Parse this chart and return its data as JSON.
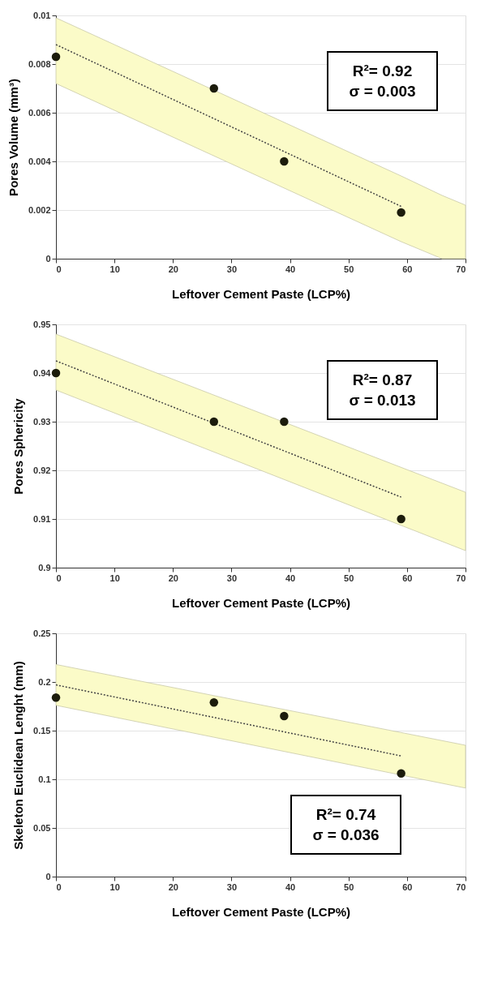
{
  "chart_data": [
    {
      "type": "scatter",
      "xlabel": "Leftover Cement Paste (LCP%)",
      "ylabel": "Pores Volume (mm³)",
      "xlim": [
        0,
        70
      ],
      "xticks": [
        0,
        10,
        20,
        30,
        40,
        50,
        60,
        70
      ],
      "ylim": [
        0,
        0.01
      ],
      "yticks": [
        0,
        0.002,
        0.004,
        0.006,
        0.008,
        0.01
      ],
      "grid": "y",
      "annotations": [
        "R²= 0.92",
        "σ = 0.003"
      ],
      "series": [
        {
          "type": "area",
          "color": "#fbfbc8",
          "x": [
            0,
            59,
            66,
            70
          ],
          "values": [
            null,
            null,
            null,
            null
          ],
          "lower": [
            0.0072,
            0.0007,
            0,
            0
          ],
          "upper": [
            0.0099,
            0.0034,
            0.0026,
            0.0022
          ]
        },
        {
          "type": "line",
          "color": "#444444",
          "line_style": "dotted",
          "marker": "none",
          "x": [
            0,
            59
          ],
          "values": [
            0.0088,
            0.00215
          ]
        },
        {
          "type": "scatter",
          "color": "#1c1c0c",
          "marker": "circle",
          "x": [
            0,
            27,
            39,
            59
          ],
          "values": [
            0.0083,
            0.007,
            0.004,
            0.0019
          ]
        }
      ]
    },
    {
      "type": "scatter",
      "xlabel": "Leftover Cement Paste (LCP%)",
      "ylabel": "Pores Sphericity",
      "xlim": [
        0,
        70
      ],
      "xticks": [
        0,
        10,
        20,
        30,
        40,
        50,
        60,
        70
      ],
      "ylim": [
        0.9,
        0.95
      ],
      "yticks": [
        0.9,
        0.91,
        0.92,
        0.93,
        0.94,
        0.95
      ],
      "grid": "y",
      "annotations": [
        "R²= 0.87",
        "σ = 0.013"
      ],
      "series": [
        {
          "type": "area",
          "color": "#fbfbc8",
          "x": [
            0,
            70
          ],
          "values": [
            null,
            null
          ],
          "lower": [
            0.9365,
            0.9035
          ],
          "upper": [
            0.948,
            0.9155
          ]
        },
        {
          "type": "line",
          "color": "#444444",
          "line_style": "dotted",
          "marker": "none",
          "x": [
            0,
            59
          ],
          "values": [
            0.9425,
            0.9145
          ]
        },
        {
          "type": "scatter",
          "color": "#1c1c0c",
          "marker": "circle",
          "x": [
            0,
            27,
            39,
            59
          ],
          "values": [
            0.94,
            0.93,
            0.93,
            0.91
          ]
        }
      ]
    },
    {
      "type": "scatter",
      "xlabel": "Leftover Cement Paste (LCP%)",
      "ylabel": "Skeleton Euclidean Lenght (mm)",
      "xlim": [
        0,
        70
      ],
      "xticks": [
        0,
        10,
        20,
        30,
        40,
        50,
        60,
        70
      ],
      "ylim": [
        0,
        0.25
      ],
      "yticks": [
        0,
        0.05,
        0.1,
        0.15,
        0.2,
        0.25
      ],
      "grid": "y",
      "annotations": [
        "R²= 0.74",
        "σ = 0.036"
      ],
      "series": [
        {
          "type": "area",
          "color": "#fbfbc8",
          "x": [
            0,
            70
          ],
          "values": [
            null,
            null
          ],
          "lower": [
            0.176,
            0.091
          ],
          "upper": [
            0.218,
            0.135
          ]
        },
        {
          "type": "line",
          "color": "#444444",
          "line_style": "dotted",
          "marker": "none",
          "x": [
            0,
            59
          ],
          "values": [
            0.197,
            0.124
          ]
        },
        {
          "type": "scatter",
          "color": "#1c1c0c",
          "marker": "circle",
          "x": [
            0,
            27,
            39,
            59
          ],
          "values": [
            0.184,
            0.179,
            0.165,
            0.106
          ]
        }
      ]
    }
  ]
}
